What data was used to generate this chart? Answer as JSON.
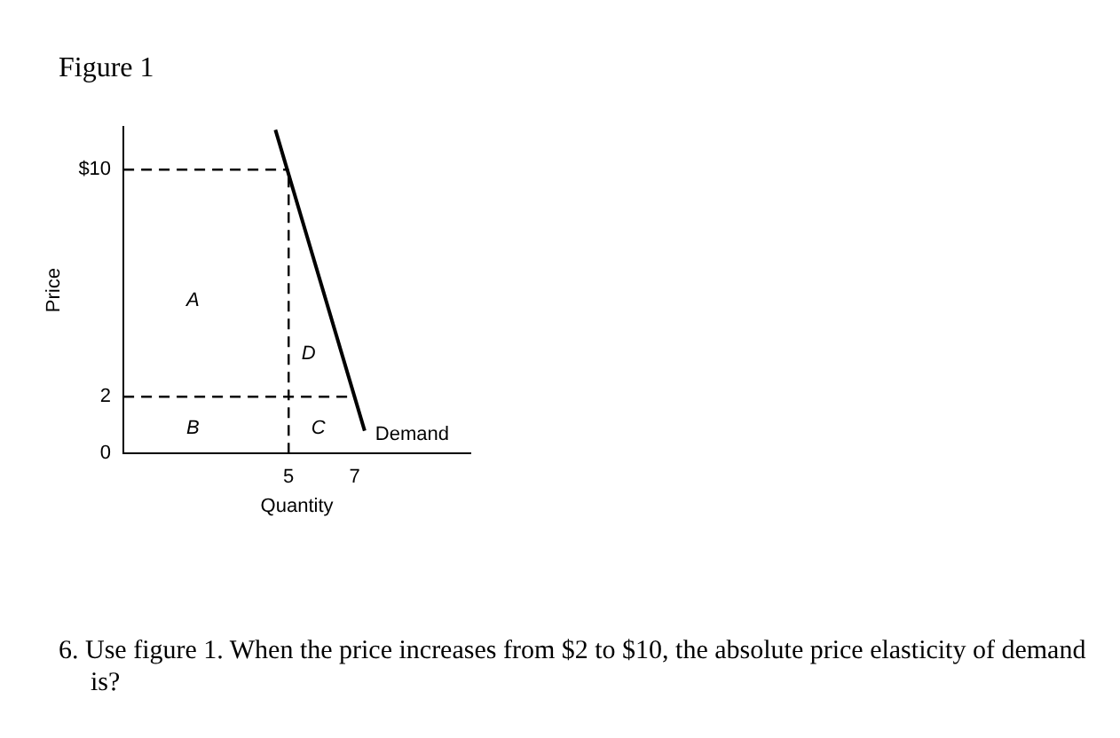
{
  "chart_data": {
    "type": "line",
    "title": "Figure 1",
    "xlabel": "Quantity",
    "ylabel": "Price",
    "xlim": [
      0,
      10.5
    ],
    "ylim": [
      0,
      11.5
    ],
    "xticks": [
      5,
      7
    ],
    "yticks": [
      0,
      2,
      {
        "value": 10,
        "label": "$10"
      }
    ],
    "grid": false,
    "legend": false,
    "marker": "none",
    "series": [
      {
        "name": "Demand",
        "color": "#000000",
        "x": [
          4.6,
          7.3
        ],
        "values": [
          11.4,
          0.8
        ],
        "line_style": "solid"
      },
      {
        "color": "#000000",
        "x": [
          0,
          5
        ],
        "values": [
          10,
          10
        ],
        "line_style": "dashed"
      },
      {
        "color": "#000000",
        "x": [
          0,
          7
        ],
        "values": [
          2,
          2
        ],
        "line_style": "dashed"
      },
      {
        "color": "#000000",
        "x": [
          5,
          5
        ],
        "values": [
          0,
          10
        ],
        "line_style": "dashed"
      }
    ],
    "annotations": [
      "A",
      "B",
      "C",
      "D",
      "6. Use figure 1. When the price increases from $2 to $10, the absolute price elasticity of demand is?"
    ]
  }
}
